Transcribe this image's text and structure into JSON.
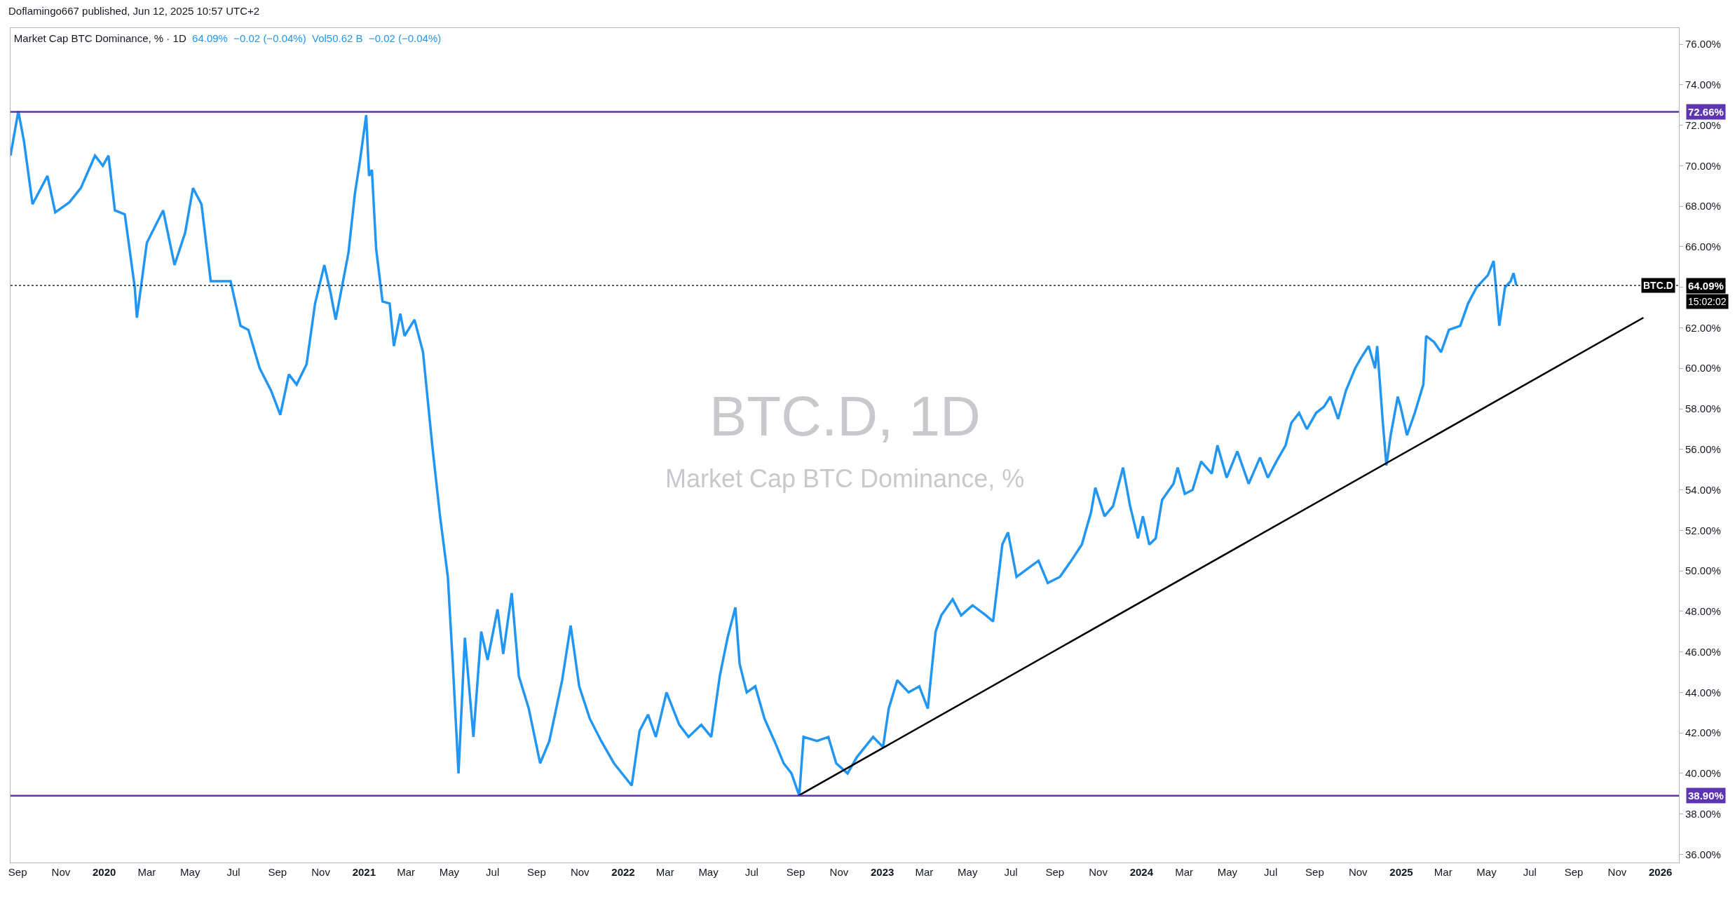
{
  "chart_data": {
    "type": "line",
    "title": "Market Cap BTC Dominance, % · 1D",
    "subtitle": "64.09%  −0.02 (−0.04%)  Vol50.62 B  −0.02 (−0.04%)",
    "annotations": [
      "Doflamingo667 published, Jun 12, 2025 10:57 UTC+2",
      "BTC.D, 1D",
      "Market Cap BTC Dominance, %",
      {
        "text": "BTC.D",
        "y": 64.09
      },
      "15:02:02"
    ],
    "series": [
      {
        "color": "#2196f3",
        "x": [
          "2019-08-22",
          "2019-09-02",
          "2019-09-10",
          "2019-09-22",
          "2019-10-13",
          "2019-10-24",
          "2019-11-13",
          "2019-11-29",
          "2019-12-19",
          "2019-12-30",
          "2020-01-07",
          "2020-01-16",
          "2020-01-30",
          "2020-02-13",
          "2020-02-16",
          "2020-03-01",
          "2020-03-24",
          "2020-04-09",
          "2020-04-24",
          "2020-05-05",
          "2020-05-17",
          "2020-05-30",
          "2020-06-27",
          "2020-07-11",
          "2020-07-22",
          "2020-08-07",
          "2020-08-23",
          "2020-09-05",
          "2020-09-17",
          "2020-09-28",
          "2020-10-12",
          "2020-10-24",
          "2020-11-06",
          "2020-11-15",
          "2020-11-22",
          "2020-12-10",
          "2020-12-19",
          "2020-12-26",
          "2021-01-04",
          "2021-01-08",
          "2021-01-12",
          "2021-01-18",
          "2021-01-27",
          "2021-02-06",
          "2021-02-12",
          "2021-02-21",
          "2021-02-27",
          "2021-03-13",
          "2021-03-25",
          "2021-04-07",
          "2021-04-18",
          "2021-04-29",
          "2021-05-06",
          "2021-05-14",
          "2021-05-23",
          "2021-06-04",
          "2021-06-15",
          "2021-06-24",
          "2021-07-08",
          "2021-07-16",
          "2021-07-28",
          "2021-08-07",
          "2021-08-21",
          "2021-09-06",
          "2021-09-19",
          "2021-10-07",
          "2021-10-19",
          "2021-10-31",
          "2021-11-15",
          "2021-12-01",
          "2021-12-19",
          "2022-01-13",
          "2022-01-24",
          "2022-02-05",
          "2022-02-16",
          "2022-03-03",
          "2022-03-21",
          "2022-04-03",
          "2022-04-21",
          "2022-05-05",
          "2022-05-17",
          "2022-05-28",
          "2022-06-08",
          "2022-06-14",
          "2022-06-24",
          "2022-07-06",
          "2022-07-19",
          "2022-08-02",
          "2022-08-15",
          "2022-08-26",
          "2022-09-06",
          "2022-09-12",
          "2022-10-01",
          "2022-10-17",
          "2022-10-28",
          "2022-11-13",
          "2022-11-26",
          "2022-12-19",
          "2023-01-02",
          "2023-01-10",
          "2023-01-22",
          "2023-02-07",
          "2023-02-22",
          "2023-03-06",
          "2023-03-17",
          "2023-03-25",
          "2023-04-10",
          "2023-04-22",
          "2023-05-08",
          "2023-05-27",
          "2023-06-06",
          "2023-06-19",
          "2023-06-27",
          "2023-07-09",
          "2023-07-28",
          "2023-08-09",
          "2023-08-22",
          "2023-09-08",
          "2023-09-24",
          "2023-10-09",
          "2023-10-22",
          "2023-10-28",
          "2023-11-10",
          "2023-11-22",
          "2023-12-06",
          "2023-12-16",
          "2023-12-27",
          "2024-01-03",
          "2024-01-12",
          "2024-01-21",
          "2024-01-30",
          "2024-02-15",
          "2024-02-21",
          "2024-03-02",
          "2024-03-13",
          "2024-03-25",
          "2024-04-09",
          "2024-04-17",
          "2024-04-30",
          "2024-05-15",
          "2024-05-31",
          "2024-06-16",
          "2024-06-27",
          "2024-07-09",
          "2024-07-22",
          "2024-07-30",
          "2024-08-10",
          "2024-08-21",
          "2024-09-03",
          "2024-09-14",
          "2024-09-23",
          "2024-10-04",
          "2024-10-15",
          "2024-10-28",
          "2024-11-05",
          "2024-11-16",
          "2024-11-25",
          "2024-11-28",
          "2024-12-06",
          "2024-12-11",
          "2024-12-17",
          "2024-12-27",
          "2024-12-31",
          "2025-01-09",
          "2025-01-20",
          "2025-02-01",
          "2025-02-05",
          "2025-02-16",
          "2025-02-26",
          "2025-03-09",
          "2025-03-25",
          "2025-04-05",
          "2025-04-17",
          "2025-05-03",
          "2025-05-11",
          "2025-05-19",
          "2025-05-27",
          "2025-06-04",
          "2025-06-08",
          "2025-06-12"
        ],
        "values": [
          70.5,
          72.7,
          71.2,
          68.1,
          69.5,
          67.7,
          68.2,
          68.9,
          70.5,
          70.0,
          70.5,
          67.8,
          67.6,
          64.0,
          62.5,
          66.2,
          67.8,
          65.1,
          66.7,
          68.9,
          68.1,
          64.3,
          64.3,
          62.1,
          61.9,
          60.0,
          58.9,
          57.7,
          59.7,
          59.2,
          60.2,
          63.2,
          65.1,
          63.7,
          62.4,
          65.7,
          68.6,
          70.2,
          72.5,
          69.5,
          69.8,
          65.9,
          63.3,
          63.2,
          61.1,
          62.7,
          61.6,
          62.4,
          60.8,
          56.2,
          52.7,
          49.7,
          45.4,
          40.0,
          46.7,
          41.8,
          47.0,
          45.6,
          48.1,
          45.9,
          48.9,
          44.8,
          43.2,
          40.5,
          41.6,
          44.6,
          47.3,
          44.3,
          42.7,
          41.6,
          40.5,
          39.4,
          42.1,
          42.9,
          41.8,
          44.0,
          42.4,
          41.8,
          42.4,
          41.8,
          44.8,
          46.7,
          48.2,
          45.4,
          44.0,
          44.3,
          42.7,
          41.6,
          40.5,
          40.0,
          38.9,
          41.8,
          41.6,
          41.8,
          40.5,
          40.0,
          40.8,
          41.8,
          41.3,
          43.2,
          44.6,
          44.0,
          44.3,
          43.2,
          47.0,
          47.8,
          48.6,
          47.8,
          48.3,
          47.8,
          47.5,
          51.3,
          51.9,
          49.7,
          50.2,
          50.5,
          49.4,
          49.7,
          50.5,
          51.3,
          52.9,
          54.1,
          52.7,
          53.2,
          55.1,
          53.2,
          51.6,
          52.7,
          51.3,
          51.6,
          53.5,
          54.3,
          55.1,
          53.8,
          54.0,
          55.4,
          54.8,
          56.2,
          54.6,
          55.9,
          54.3,
          55.6,
          54.6,
          55.4,
          56.2,
          57.3,
          57.8,
          57.0,
          57.8,
          58.1,
          58.6,
          57.5,
          58.9,
          60.0,
          60.5,
          61.1,
          60.0,
          61.1,
          57.3,
          55.2,
          56.7,
          58.6,
          58.1,
          56.7,
          57.8,
          59.2,
          61.6,
          61.3,
          60.8,
          61.9,
          62.1,
          63.2,
          64.0,
          64.6,
          65.3,
          62.1,
          64.0,
          64.3,
          64.7,
          64.09
        ]
      },
      {
        "type": "line",
        "color": "#000000",
        "x": [
          "2022-09-05",
          "2025-12-08"
        ],
        "values": [
          38.9,
          62.5
        ]
      }
    ],
    "xlim": [
      "2019-08-22",
      "2026-01-27"
    ],
    "xticks": [
      {
        "value": "2019-09-01",
        "label": "Sep"
      },
      {
        "value": "2019-11-01",
        "label": "Nov"
      },
      {
        "value": "2020-01-01",
        "label": "2020"
      },
      {
        "value": "2020-03-01",
        "label": "Mar"
      },
      {
        "value": "2020-05-01",
        "label": "May"
      },
      {
        "value": "2020-07-01",
        "label": "Jul"
      },
      {
        "value": "2020-09-01",
        "label": "Sep"
      },
      {
        "value": "2020-11-01",
        "label": "Nov"
      },
      {
        "value": "2021-01-01",
        "label": "2021"
      },
      {
        "value": "2021-03-01",
        "label": "Mar"
      },
      {
        "value": "2021-05-01",
        "label": "May"
      },
      {
        "value": "2021-07-01",
        "label": "Jul"
      },
      {
        "value": "2021-09-01",
        "label": "Sep"
      },
      {
        "value": "2021-11-01",
        "label": "Nov"
      },
      {
        "value": "2022-01-01",
        "label": "2022"
      },
      {
        "value": "2022-03-01",
        "label": "Mar"
      },
      {
        "value": "2022-05-01",
        "label": "May"
      },
      {
        "value": "2022-07-01",
        "label": "Jul"
      },
      {
        "value": "2022-09-01",
        "label": "Sep"
      },
      {
        "value": "2022-11-01",
        "label": "Nov"
      },
      {
        "value": "2023-01-01",
        "label": "2023"
      },
      {
        "value": "2023-03-01",
        "label": "Mar"
      },
      {
        "value": "2023-05-01",
        "label": "May"
      },
      {
        "value": "2023-07-01",
        "label": "Jul"
      },
      {
        "value": "2023-09-01",
        "label": "Sep"
      },
      {
        "value": "2023-11-01",
        "label": "Nov"
      },
      {
        "value": "2024-01-01",
        "label": "2024"
      },
      {
        "value": "2024-03-01",
        "label": "Mar"
      },
      {
        "value": "2024-05-01",
        "label": "May"
      },
      {
        "value": "2024-07-01",
        "label": "Jul"
      },
      {
        "value": "2024-09-01",
        "label": "Sep"
      },
      {
        "value": "2024-11-01",
        "label": "Nov"
      },
      {
        "value": "2025-01-01",
        "label": "2025"
      },
      {
        "value": "2025-03-01",
        "label": "Mar"
      },
      {
        "value": "2025-05-01",
        "label": "May"
      },
      {
        "value": "2025-07-01",
        "label": "Jul"
      },
      {
        "value": "2025-09-01",
        "label": "Sep"
      },
      {
        "value": "2025-11-01",
        "label": "Nov"
      },
      {
        "value": "2026-01-01",
        "label": "2026"
      }
    ],
    "ylim": [
      35.6,
      76.8
    ],
    "yticks": [
      {
        "value": 36,
        "label": "36.00%"
      },
      {
        "value": 38,
        "label": "38.00%"
      },
      {
        "value": 40,
        "label": "40.00%"
      },
      {
        "value": 42,
        "label": "42.00%"
      },
      {
        "value": 44,
        "label": "44.00%"
      },
      {
        "value": 46,
        "label": "46.00%"
      },
      {
        "value": 48,
        "label": "48.00%"
      },
      {
        "value": 50,
        "label": "50.00%"
      },
      {
        "value": 52,
        "label": "52.00%"
      },
      {
        "value": 54,
        "label": "54.00%"
      },
      {
        "value": 56,
        "label": "56.00%"
      },
      {
        "value": 58,
        "label": "58.00%"
      },
      {
        "value": 60,
        "label": "60.00%"
      },
      {
        "value": 62,
        "label": "62.00%"
      },
      {
        "value": 64,
        "label": null
      },
      {
        "value": 66,
        "label": "66.00%"
      },
      {
        "value": 68,
        "label": "68.00%"
      },
      {
        "value": 70,
        "label": "70.00%"
      },
      {
        "value": 72,
        "label": "72.00%"
      },
      {
        "value": 74,
        "label": "74.00%"
      },
      {
        "value": 76,
        "label": "76.00%"
      }
    ],
    "ref_lines": [
      {
        "axis": "y",
        "value": 72.66,
        "label": "72.66%",
        "color": "#5e35b1",
        "line_style": "solid"
      },
      {
        "axis": "y",
        "value": 38.9,
        "label": "38.90%",
        "color": "#5e35b1",
        "line_style": "solid"
      },
      {
        "axis": "y",
        "value": 64.09,
        "label": "64.09%",
        "color": "#000000",
        "line_style": "dotted"
      }
    ],
    "marker": "none",
    "line_style": "solid"
  }
}
